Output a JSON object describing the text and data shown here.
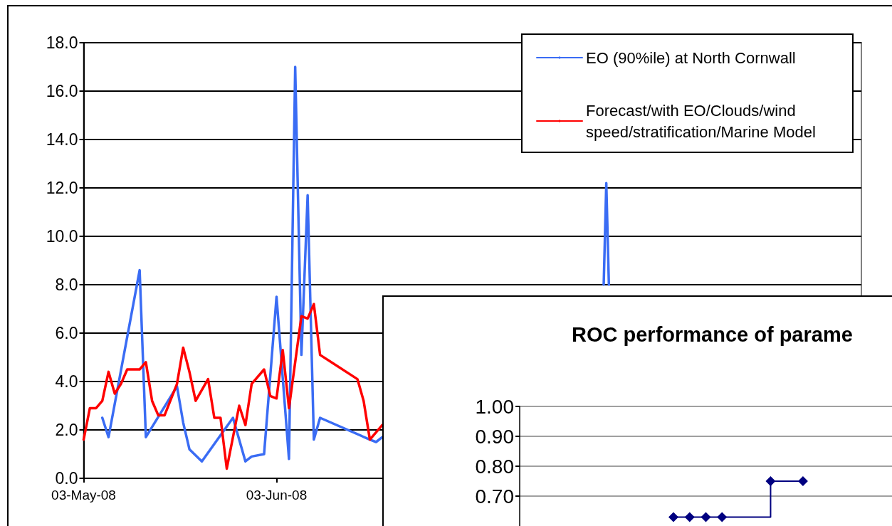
{
  "chart_data": [
    {
      "type": "line",
      "legend": "top right",
      "grid": "y",
      "marker": "none",
      "line_style": "solid",
      "xlim": [
        "2008-05-03",
        "2008-09-05"
      ],
      "xticks": [
        {
          "value": "2008-05-03",
          "label": "03-May-08"
        },
        {
          "value": "2008-06-03",
          "label": "03-Jun-08"
        }
      ],
      "ylim": [
        0,
        18
      ],
      "yticks": [
        {
          "value": 0,
          "label": "0.0"
        },
        {
          "value": 2,
          "label": "2.0"
        },
        {
          "value": 4,
          "label": "4.0"
        },
        {
          "value": 6,
          "label": "6.0"
        },
        {
          "value": 8,
          "label": "8.0"
        },
        {
          "value": 10,
          "label": "10.0"
        },
        {
          "value": 12,
          "label": "12.0"
        },
        {
          "value": 14,
          "label": "14.0"
        },
        {
          "value": 16,
          "label": "16.0"
        },
        {
          "value": 18,
          "label": "18.0"
        }
      ],
      "series": [
        {
          "name": "EO (90%ile) at North Cornwall",
          "color": "#3a6cf4",
          "x": [
            "2008-05-06",
            "2008-05-07",
            "2008-05-12",
            "2008-05-13",
            "2008-05-18",
            "2008-05-19",
            "2008-05-20",
            "2008-05-22",
            "2008-05-27",
            "2008-05-29",
            "2008-05-30",
            "2008-06-01",
            "2008-06-03",
            "2008-06-05",
            "2008-06-06",
            "2008-06-07",
            "2008-06-08",
            "2008-06-09",
            "2008-06-10",
            "2008-06-18",
            "2008-06-19",
            "2008-06-20",
            "2008-06-21",
            "2008-07-25T14:00",
            "2008-07-26",
            "2008-07-26T10:00"
          ],
          "values": [
            2.5,
            1.7,
            8.6,
            1.7,
            3.8,
            2.3,
            1.2,
            0.7,
            2.5,
            0.7,
            0.9,
            1.0,
            7.5,
            0.8,
            17.0,
            5.1,
            11.7,
            1.6,
            2.5,
            1.6,
            1.5,
            1.7,
            null,
            8.0,
            12.2,
            8.0
          ]
        },
        {
          "name": "Forecast/with EO/Clouds/wind speed/stratification/Marine Model",
          "color": "#ff0000",
          "x": [
            "2008-05-03",
            "2008-05-04",
            "2008-05-05",
            "2008-05-06",
            "2008-05-07",
            "2008-05-08",
            "2008-05-09",
            "2008-05-10",
            "2008-05-12",
            "2008-05-13",
            "2008-05-14",
            "2008-05-15",
            "2008-05-16",
            "2008-05-18",
            "2008-05-19",
            "2008-05-20",
            "2008-05-21",
            "2008-05-23",
            "2008-05-24",
            "2008-05-25",
            "2008-05-26",
            "2008-05-28",
            "2008-05-29",
            "2008-05-30",
            "2008-06-01",
            "2008-06-02",
            "2008-06-03",
            "2008-06-04",
            "2008-06-05",
            "2008-06-07",
            "2008-06-08",
            "2008-06-09",
            "2008-06-10",
            "2008-06-16",
            "2008-06-17",
            "2008-06-18",
            "2008-06-20"
          ],
          "values": [
            1.6,
            2.9,
            2.9,
            3.2,
            4.4,
            3.5,
            3.9,
            4.5,
            4.5,
            4.8,
            3.2,
            2.6,
            2.6,
            3.9,
            5.4,
            4.4,
            3.2,
            4.1,
            2.5,
            2.5,
            0.4,
            3.0,
            2.2,
            3.9,
            4.5,
            3.4,
            3.3,
            5.3,
            2.9,
            6.7,
            6.6,
            7.2,
            5.1,
            4.1,
            3.2,
            1.6,
            2.2
          ]
        }
      ]
    },
    {
      "type": "step",
      "title": "ROC performance of parame",
      "grid": "y",
      "marker": "diamond",
      "tick_labels": "y",
      "categories": [
        null,
        null,
        null,
        null,
        null,
        null,
        null,
        null,
        null,
        null,
        null,
        null,
        null,
        null,
        null,
        null,
        null,
        null,
        null,
        null,
        null,
        null,
        null
      ],
      "ylim": [
        0.6,
        1.0
      ],
      "yticks": [
        {
          "value": 0.7,
          "label": "0.70"
        },
        {
          "value": 0.8,
          "label": "0.80"
        },
        {
          "value": 0.9,
          "label": "0.90"
        },
        {
          "value": 1.0,
          "label": "1.00"
        }
      ],
      "series": [
        {
          "color": "#000080",
          "values": [
            null,
            null,
            null,
            null,
            null,
            null,
            null,
            null,
            null,
            0.63,
            0.63,
            0.63,
            0.63,
            null,
            null,
            0.75,
            null,
            0.75,
            null,
            null,
            null,
            null,
            null
          ]
        }
      ]
    }
  ]
}
